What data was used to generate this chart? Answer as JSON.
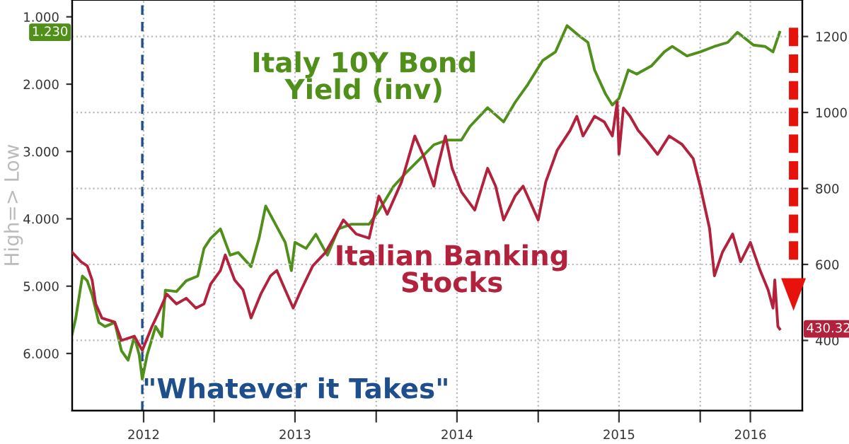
{
  "chart_data": {
    "type": "line",
    "ylabel": "High=> Low",
    "xlim": [
      "2012-02-16",
      "2016-08-18"
    ],
    "xticks": [
      {
        "value": "2012-07-26",
        "label": "2012"
      },
      {
        "value": "2013-01-01",
        "label": null
      },
      {
        "value": "2013-07-02",
        "label": "2013"
      },
      {
        "value": "2014-01-01",
        "label": null
      },
      {
        "value": "2014-07-02",
        "label": "2014"
      },
      {
        "value": "2015-01-01",
        "label": null
      },
      {
        "value": "2015-07-02",
        "label": "2015"
      },
      {
        "value": "2016-01-01",
        "label": null
      },
      {
        "value": "2016-04-23",
        "label": "2016"
      }
    ],
    "ylim": [
      6.85,
      0.75
    ],
    "yticks": [
      {
        "value": 1,
        "label": "1.000"
      },
      {
        "value": 2,
        "label": "2.000"
      },
      {
        "value": 3,
        "label": "3.000"
      },
      {
        "value": 4,
        "label": "4.000"
      },
      {
        "value": 5,
        "label": "5.000"
      },
      {
        "value": 6,
        "label": "6.000"
      }
    ],
    "y2lim": [
      215,
      1296
    ],
    "y2ticks": [
      400,
      600,
      800,
      1000,
      1200
    ],
    "grid": true,
    "annotations": [
      "1.230",
      "430.32"
    ],
    "ref_lines": [
      {
        "axis": "x",
        "value": "2012-07-23",
        "label": "\"Whatever it Takes\"",
        "color": "#1f4e8c",
        "line_style": "dashed"
      }
    ],
    "series": [
      {
        "name": "Italy 10Y Bond Yield (inv)",
        "color": "#4f8f1a",
        "axis": "y",
        "x": [
          "2012-02-16",
          "2012-02-24",
          "2012-03-10",
          "2012-03-21",
          "2012-04-01",
          "2012-04-16",
          "2012-04-30",
          "2012-05-22",
          "2012-06-06",
          "2012-06-21",
          "2012-07-05",
          "2012-07-16",
          "2012-07-23",
          "2012-08-03",
          "2012-08-22",
          "2012-09-05",
          "2012-09-13",
          "2012-10-08",
          "2012-10-30",
          "2012-11-25",
          "2012-12-09",
          "2012-12-24",
          "2013-01-15",
          "2013-02-06",
          "2013-02-24",
          "2013-03-25",
          "2013-04-12",
          "2013-04-27",
          "2013-05-19",
          "2013-06-10",
          "2013-06-24",
          "2013-07-02",
          "2013-07-27",
          "2013-08-18",
          "2013-09-13",
          "2013-10-08",
          "2013-11-06",
          "2013-12-16",
          "2014-01-07",
          "2014-02-09",
          "2014-03-10",
          "2014-04-20",
          "2014-05-11",
          "2014-06-10",
          "2014-07-12",
          "2014-07-31",
          "2014-09-09",
          "2014-10-15",
          "2014-11-10",
          "2014-12-09",
          "2015-01-11",
          "2015-02-09",
          "2015-03-07",
          "2015-04-01",
          "2015-04-23",
          "2015-05-08",
          "2015-06-02",
          "2015-06-17",
          "2015-07-02",
          "2015-07-23",
          "2015-08-11",
          "2015-09-13",
          "2015-10-12",
          "2015-10-30",
          "2015-12-02",
          "2016-01-01",
          "2016-02-02",
          "2016-03-03",
          "2016-03-25",
          "2016-04-30",
          "2016-05-26",
          "2016-06-13",
          "2016-06-28"
        ],
        "values": [
          5.71,
          5.48,
          4.85,
          4.92,
          5.13,
          5.54,
          5.6,
          5.54,
          5.96,
          6.1,
          5.75,
          6.02,
          6.38,
          6.02,
          5.6,
          5.75,
          5.06,
          5.08,
          4.92,
          4.85,
          4.44,
          4.29,
          4.15,
          4.54,
          4.5,
          4.71,
          4.29,
          3.81,
          4.08,
          4.35,
          4.77,
          4.35,
          4.44,
          4.23,
          4.54,
          4.15,
          4.08,
          4.08,
          3.88,
          3.52,
          3.31,
          3.04,
          2.9,
          2.83,
          2.83,
          2.63,
          2.35,
          2.56,
          2.27,
          2.0,
          1.65,
          1.52,
          1.13,
          1.27,
          1.38,
          1.79,
          2.15,
          2.31,
          2.21,
          1.79,
          1.85,
          1.73,
          1.52,
          1.44,
          1.58,
          1.52,
          1.44,
          1.38,
          1.23,
          1.42,
          1.44,
          1.52,
          1.23
        ]
      },
      {
        "name": "Italian Banking Stocks",
        "color": "#b3223c",
        "axis": "y2",
        "x": [
          "2012-02-16",
          "2012-03-07",
          "2012-03-21",
          "2012-04-01",
          "2012-04-09",
          "2012-04-23",
          "2012-05-22",
          "2012-06-06",
          "2012-07-05",
          "2012-07-23",
          "2012-08-14",
          "2012-08-29",
          "2012-09-16",
          "2012-10-08",
          "2012-10-30",
          "2012-11-21",
          "2012-12-09",
          "2012-12-24",
          "2013-01-15",
          "2013-01-26",
          "2013-02-16",
          "2013-03-07",
          "2013-03-25",
          "2013-04-16",
          "2013-05-08",
          "2013-05-22",
          "2013-06-10",
          "2013-06-28",
          "2013-07-16",
          "2013-08-11",
          "2013-09-09",
          "2013-09-27",
          "2013-10-19",
          "2013-11-17",
          "2013-12-16",
          "2014-01-07",
          "2014-01-26",
          "2014-02-27",
          "2014-03-29",
          "2014-04-20",
          "2014-05-11",
          "2014-05-19",
          "2014-06-06",
          "2014-06-21",
          "2014-07-12",
          "2014-08-11",
          "2014-09-09",
          "2014-09-27",
          "2014-10-15",
          "2014-11-10",
          "2014-11-28",
          "2015-01-01",
          "2015-01-18",
          "2015-02-13",
          "2015-03-14",
          "2015-03-29",
          "2015-04-12",
          "2015-05-08",
          "2015-05-30",
          "2015-06-17",
          "2015-06-28",
          "2015-07-02",
          "2015-07-12",
          "2015-07-27",
          "2015-08-14",
          "2015-09-02",
          "2015-09-27",
          "2015-10-23",
          "2015-11-21",
          "2015-12-16",
          "2016-01-01",
          "2016-01-22",
          "2016-02-02",
          "2016-02-20",
          "2016-03-14",
          "2016-04-01",
          "2016-04-23",
          "2016-05-15",
          "2016-06-02",
          "2016-06-13",
          "2016-06-17",
          "2016-06-24",
          "2016-06-28"
        ],
        "values": [
          632,
          607,
          596,
          559,
          496,
          459,
          448,
          400,
          411,
          374,
          437,
          474,
          522,
          496,
          511,
          485,
          496,
          548,
          584,
          625,
          559,
          533,
          459,
          522,
          570,
          584,
          533,
          485,
          533,
          596,
          632,
          669,
          717,
          680,
          669,
          780,
          732,
          817,
          938,
          879,
          806,
          853,
          938,
          853,
          791,
          743,
          853,
          806,
          717,
          780,
          806,
          717,
          817,
          901,
          953,
          990,
          938,
          990,
          975,
          938,
          1027,
          890,
          1012,
          990,
          953,
          927,
          890,
          938,
          916,
          879,
          806,
          695,
          570,
          632,
          680,
          607,
          658,
          584,
          533,
          485,
          559,
          437,
          430.32
        ]
      }
    ]
  }
}
